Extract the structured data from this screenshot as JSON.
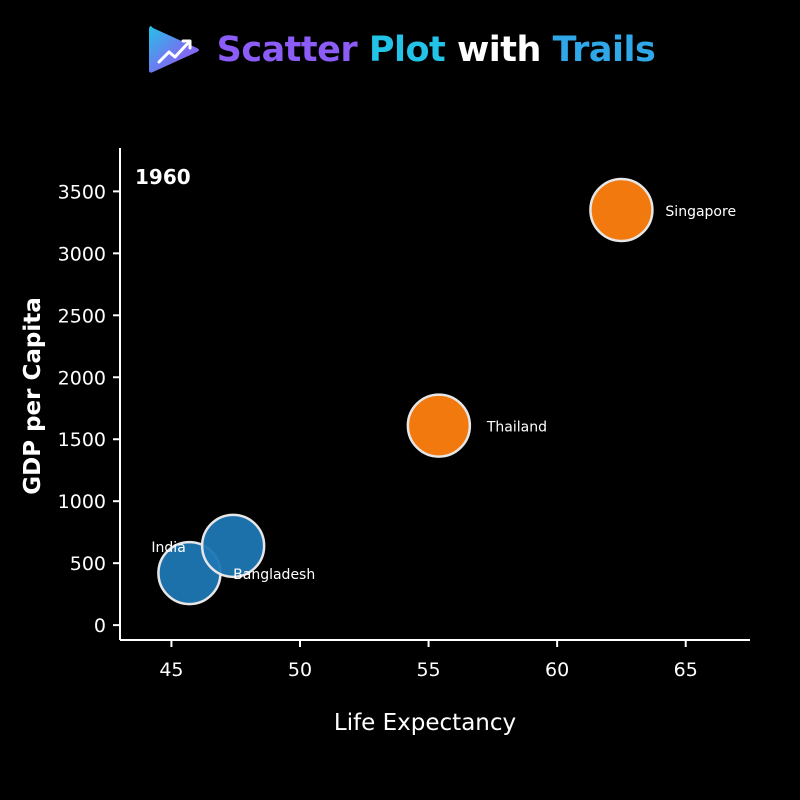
{
  "header": {
    "title_part1": "Scatter",
    "title_part2": "Plot",
    "title_part3": "with",
    "title_part4": "Trails",
    "logo_icon": "play-chart-logo-icon"
  },
  "colors": {
    "background": "#000000",
    "title_purple": "#8b5cf6",
    "title_cyan": "#22c3e6",
    "title_white": "#ffffff",
    "title_blue": "#2fa7e8",
    "asia_south": "#1f77b4",
    "asia_southeast": "#ff7f0e",
    "axis": "#ffffff",
    "marker_stroke": "#e6e6e6"
  },
  "chart_data": {
    "type": "scatter",
    "year_label": "1960",
    "xlabel": "Life Expectancy",
    "ylabel": "GDP per Capita",
    "xlim": [
      43,
      67.5
    ],
    "ylim": [
      -120,
      3850
    ],
    "x_ticks": [
      45,
      50,
      55,
      60,
      65
    ],
    "y_ticks": [
      0,
      500,
      1000,
      1500,
      2000,
      2500,
      3000,
      3500
    ],
    "points": [
      {
        "name": "India",
        "x": 45.7,
        "y": 420,
        "color": "#1f77b4"
      },
      {
        "name": "Bangladesh",
        "x": 47.4,
        "y": 640,
        "color": "#1f77b4"
      },
      {
        "name": "Thailand",
        "x": 55.4,
        "y": 1610,
        "color": "#ff7f0e"
      },
      {
        "name": "Singapore",
        "x": 62.5,
        "y": 3350,
        "color": "#ff7f0e"
      }
    ]
  }
}
